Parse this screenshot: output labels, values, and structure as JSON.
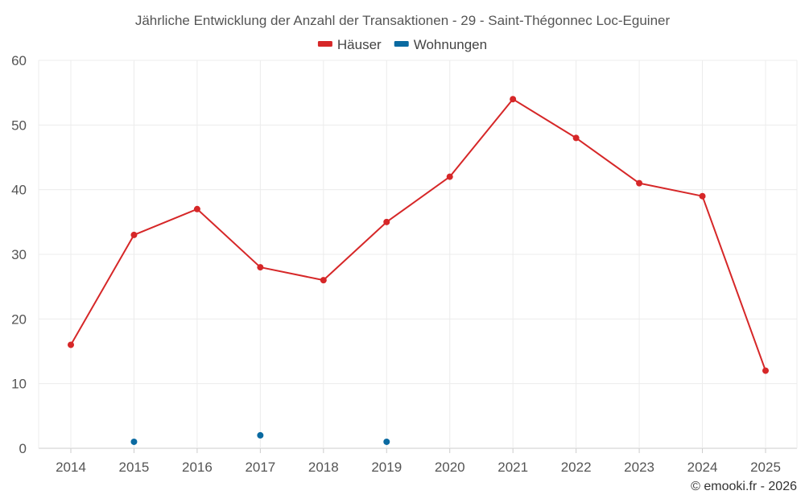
{
  "chart_data": {
    "type": "line",
    "title": "Jährliche Entwicklung der Anzahl der Transaktionen - 29 - Saint-Thégonnec Loc-Eguiner",
    "categories": [
      "2014",
      "2015",
      "2016",
      "2017",
      "2018",
      "2019",
      "2020",
      "2021",
      "2022",
      "2023",
      "2024",
      "2025"
    ],
    "ylim": [
      0,
      60
    ],
    "yticks": [
      0,
      10,
      20,
      30,
      40,
      50,
      60
    ],
    "grid": true,
    "legend_position": "top-center",
    "series": [
      {
        "name": "Häuser",
        "color": "#d62728",
        "line": true,
        "values": [
          16,
          33,
          37,
          28,
          26,
          35,
          42,
          54,
          48,
          41,
          39,
          12
        ]
      },
      {
        "name": "Wohnungen",
        "color": "#0a6aa1",
        "line": false,
        "values": [
          null,
          1,
          null,
          2,
          null,
          1,
          null,
          null,
          null,
          null,
          null,
          null
        ]
      }
    ],
    "xlabel": "",
    "ylabel": ""
  },
  "credit": "© emooki.fr - 2026"
}
